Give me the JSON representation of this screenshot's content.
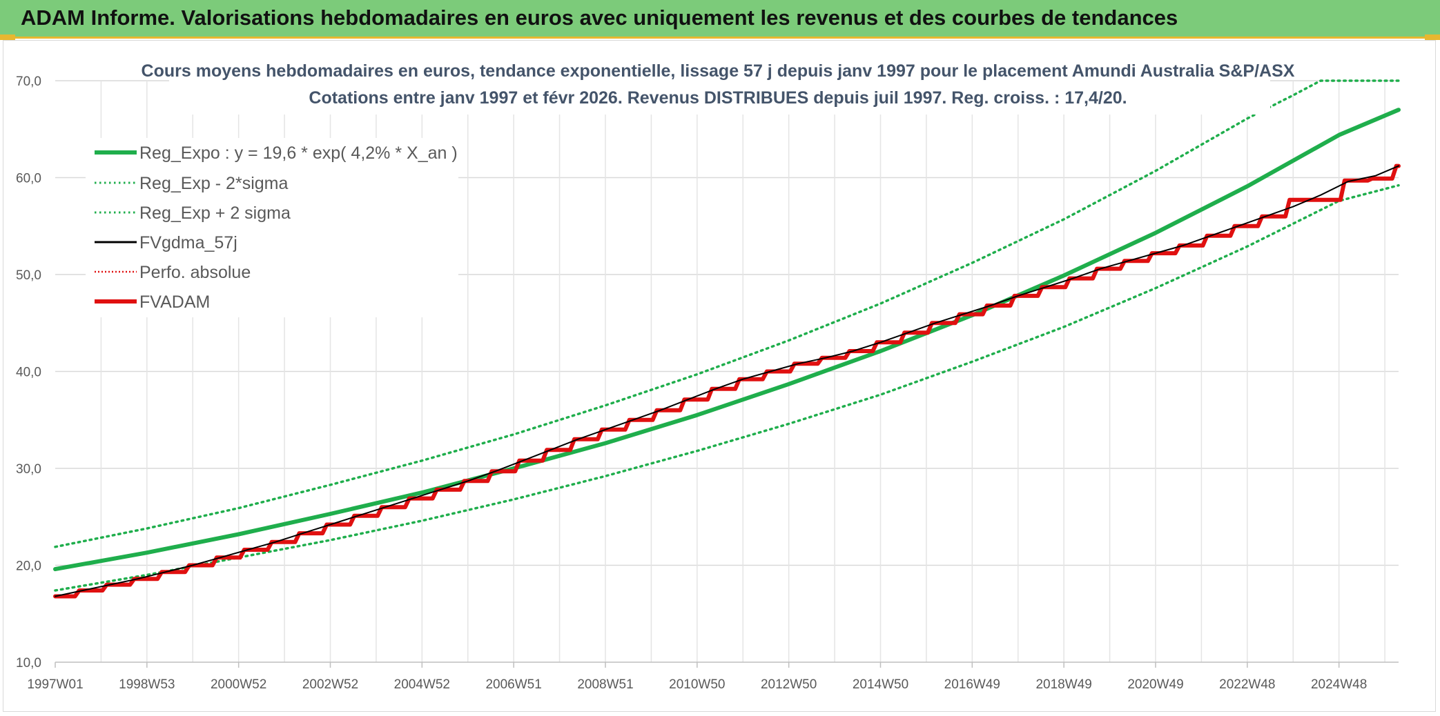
{
  "banner": {
    "title": "ADAM Informe. Valorisations hebdomadaires en euros avec uniquement les revenus et des courbes de tendances"
  },
  "colors": {
    "banner_bg": "#7ccb7a",
    "banner_accent": "#e8b730",
    "reg_green": "#1fae4c",
    "fvadam_red": "#e01010",
    "fvgdma_black": "#000000",
    "grid": "#d9d9d9",
    "title_color": "#44546a"
  },
  "chart_data": {
    "type": "line",
    "title_line1": "Cours moyens hebdomadaires en euros, tendance exponentielle, lissage 57 j depuis janv 1997 pour le placement Amundi Australia S&P/ASX",
    "title_line2": "Cotations entre janv 1997 et févr 2026. Revenus DISTRIBUES depuis juil 1997. Reg. croiss. : 17,4/20.",
    "xlabel": "",
    "ylabel": "",
    "ylim": [
      10,
      70
    ],
    "xlim": [
      1997.0,
      2026.3
    ],
    "y_ticks": [
      "10,0",
      "20,0",
      "30,0",
      "40,0",
      "50,0",
      "60,0",
      "70,0"
    ],
    "x_ticks": [
      "1997W01",
      "1998W53",
      "2000W52",
      "2002W52",
      "2004W52",
      "2006W51",
      "2008W51",
      "2010W50",
      "2012W50",
      "2014W50",
      "2016W49",
      "2018W49",
      "2020W49",
      "2022W48",
      "2024W48"
    ],
    "x_tick_years": [
      1997.0,
      1999.0,
      2001.0,
      2003.0,
      2005.0,
      2007.0,
      2009.0,
      2011.0,
      2013.0,
      2015.0,
      2017.0,
      2019.0,
      2021.0,
      2023.0,
      2025.0
    ],
    "grid": true,
    "legend_position": "top-left",
    "legend": [
      "Reg_Expo : y = 19,6 * exp( 4,2% *  X_an )",
      "Reg_Exp - 2*sigma",
      "Reg_Exp + 2 sigma",
      "FVgdma_57j",
      "Perfo. absolue",
      "FVADAM"
    ],
    "series": [
      {
        "name": "Reg_Expo",
        "style": "solid",
        "color": "#1fae4c",
        "x": [
          1997,
          1999,
          2001,
          2003,
          2005,
          2007,
          2009,
          2011,
          2013,
          2015,
          2017,
          2019,
          2021,
          2023,
          2025,
          2026.3
        ],
        "values": [
          19.6,
          21.3,
          23.2,
          25.3,
          27.5,
          30.0,
          32.6,
          35.5,
          38.7,
          42.1,
          45.8,
          49.9,
          54.3,
          59.1,
          64.4,
          67.0
        ]
      },
      {
        "name": "Reg_Exp - 2*sigma",
        "style": "dotted",
        "color": "#1fae4c",
        "x": [
          1997,
          1999,
          2001,
          2003,
          2005,
          2007,
          2009,
          2011,
          2013,
          2015,
          2017,
          2019,
          2021,
          2023,
          2025,
          2026.3
        ],
        "values": [
          17.4,
          19.0,
          20.8,
          22.6,
          24.6,
          26.8,
          29.2,
          31.8,
          34.6,
          37.6,
          41.0,
          44.6,
          48.6,
          52.9,
          57.6,
          59.2
        ]
      },
      {
        "name": "Reg_Exp + 2 sigma",
        "style": "dotted",
        "color": "#1fae4c",
        "x": [
          1997,
          1999,
          2001,
          2003,
          2005,
          2007,
          2009,
          2011,
          2013,
          2015,
          2017,
          2019,
          2021,
          2023,
          2024.0,
          2024.6,
          2026.3
        ],
        "values": [
          21.9,
          23.8,
          25.9,
          28.3,
          30.8,
          33.5,
          36.5,
          39.7,
          43.2,
          47.0,
          51.2,
          55.7,
          60.7,
          66.1,
          68.5,
          70.0,
          70.0
        ]
      },
      {
        "name": "FVgdma_57j",
        "style": "solid",
        "color": "#000000",
        "x": [
          1997.0,
          1997.6,
          1998.2,
          1998.8,
          1999.4,
          2000.0,
          2000.6,
          2001.2,
          2001.8,
          2002.4,
          2003.0,
          2003.6,
          2004.2,
          2004.8,
          2005.4,
          2006.0,
          2006.6,
          2007.2,
          2007.8,
          2008.4,
          2009.0,
          2009.6,
          2010.2,
          2010.8,
          2011.4,
          2012.0,
          2012.6,
          2013.2,
          2013.8,
          2014.4,
          2015.0,
          2015.6,
          2016.2,
          2016.8,
          2017.4,
          2018.0,
          2018.6,
          2019.2,
          2019.8,
          2020.4,
          2021.0,
          2021.6,
          2022.2,
          2022.8,
          2023.4,
          2024.0,
          2024.6,
          2025.2,
          2025.8,
          2026.3
        ],
        "values": [
          16.8,
          17.4,
          18.0,
          18.6,
          19.3,
          20.0,
          20.8,
          21.6,
          22.4,
          23.3,
          24.2,
          25.1,
          26.0,
          26.9,
          27.8,
          28.7,
          29.7,
          30.8,
          31.9,
          33.0,
          34.0,
          35.0,
          36.0,
          37.1,
          38.2,
          39.2,
          40.0,
          40.8,
          41.4,
          42.1,
          43.0,
          44.0,
          45.0,
          45.9,
          46.8,
          47.8,
          48.7,
          49.6,
          50.6,
          51.4,
          52.2,
          53.0,
          54.0,
          55.0,
          56.0,
          57.0,
          58.2,
          59.6,
          60.2,
          61.2
        ]
      },
      {
        "name": "Perfo. absolue",
        "style": "dotted",
        "color": "#e01010",
        "x": [],
        "values": []
      },
      {
        "name": "FVADAM",
        "style": "step",
        "color": "#e01010",
        "x": [
          1997.0,
          1997.6,
          1998.2,
          1998.8,
          1999.4,
          2000.0,
          2000.6,
          2001.2,
          2001.8,
          2002.4,
          2003.0,
          2003.6,
          2004.2,
          2004.8,
          2005.4,
          2006.0,
          2006.6,
          2007.2,
          2007.8,
          2008.4,
          2009.0,
          2009.6,
          2010.2,
          2010.8,
          2011.4,
          2012.0,
          2012.6,
          2013.2,
          2013.8,
          2014.4,
          2015.0,
          2015.6,
          2016.2,
          2016.8,
          2017.4,
          2018.0,
          2018.6,
          2019.2,
          2019.8,
          2020.4,
          2021.0,
          2021.6,
          2022.2,
          2022.8,
          2023.4,
          2024.0,
          2024.6,
          2025.2,
          2025.8,
          2026.3
        ],
        "values": [
          16.8,
          17.4,
          18.0,
          18.6,
          19.3,
          20.0,
          20.8,
          21.6,
          22.4,
          23.3,
          24.2,
          25.1,
          26.0,
          26.9,
          27.8,
          28.7,
          29.7,
          30.8,
          31.9,
          33.0,
          34.0,
          35.0,
          36.0,
          37.1,
          38.2,
          39.2,
          40.0,
          40.8,
          41.4,
          42.1,
          43.0,
          44.0,
          45.0,
          45.9,
          46.8,
          47.8,
          48.7,
          49.6,
          50.6,
          51.4,
          52.2,
          53.0,
          54.0,
          55.0,
          56.0,
          57.7,
          57.7,
          59.7,
          59.9,
          61.2
        ]
      }
    ]
  }
}
